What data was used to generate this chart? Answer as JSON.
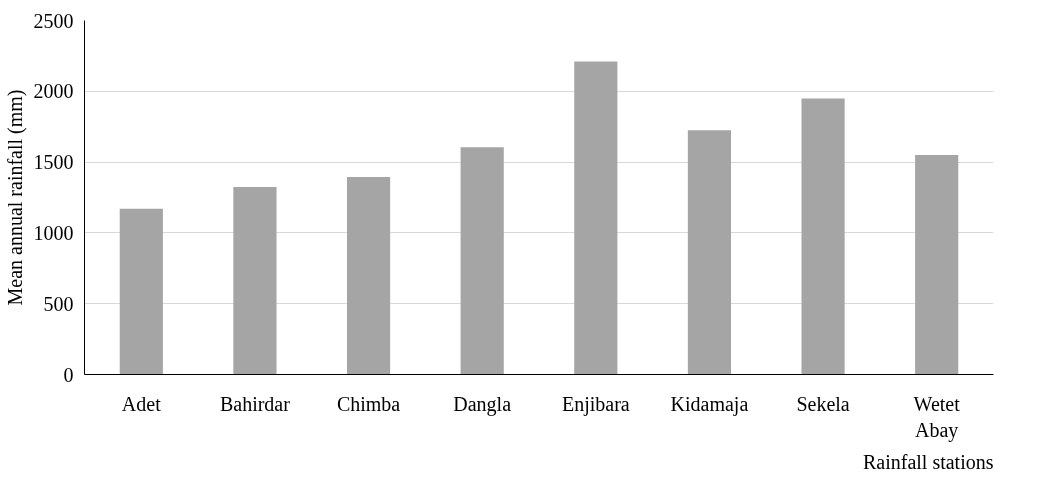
{
  "chart_data": {
    "type": "bar",
    "xlabel": "Rainfall stations",
    "ylabel": "Mean annual rainfall (mm)",
    "categories": [
      "Adet",
      "Bahirdar",
      "Chimba",
      "Dangla",
      "Enjibara",
      "Kidamaja",
      "Sekela",
      "Wetet Abay"
    ],
    "values": [
      1170,
      1325,
      1395,
      1605,
      2210,
      1725,
      1950,
      1550
    ],
    "color": "#a5a5a5",
    "ylim": [
      0,
      2500
    ],
    "yticks": [
      0,
      500,
      1000,
      1500,
      2000,
      2500
    ],
    "grid": "y"
  }
}
